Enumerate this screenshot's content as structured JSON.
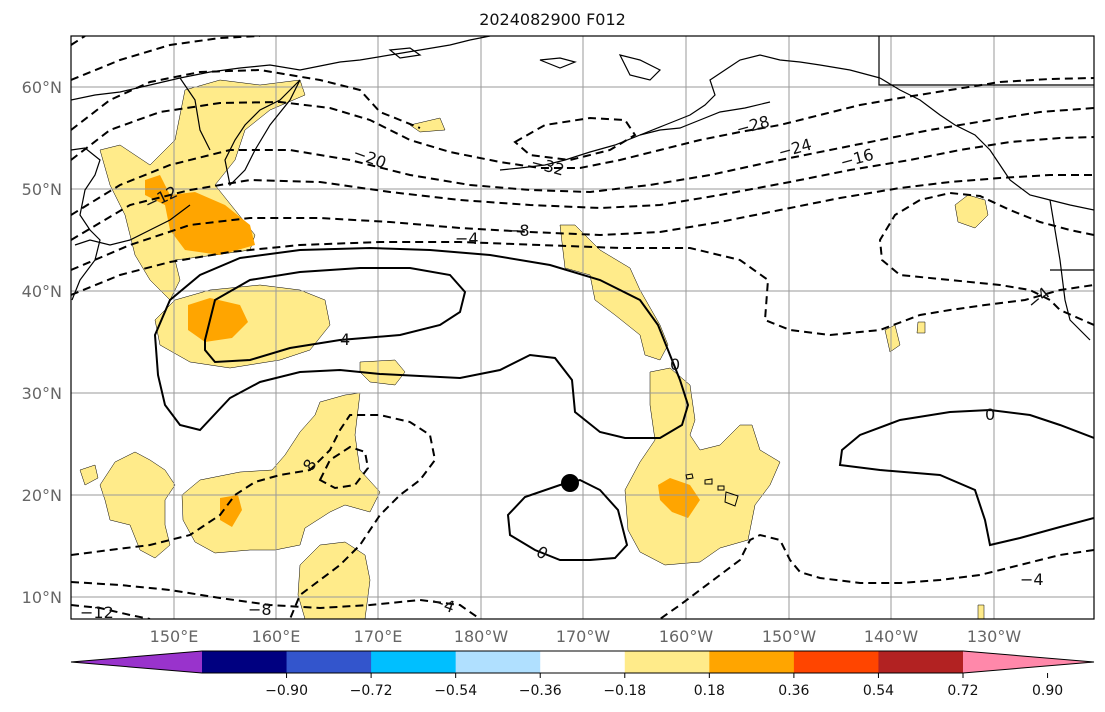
{
  "title": "2024082900 F012",
  "latitude_labels": [
    "60°N",
    "50°N",
    "40°N",
    "30°N",
    "20°N",
    "10°N"
  ],
  "longitude_labels": [
    "150°E",
    "160°E",
    "170°E",
    "180°W",
    "170°W",
    "160°W",
    "150°W",
    "140°W",
    "130°W"
  ],
  "colorbar": {
    "ticks": [
      "−0.90",
      "−0.72",
      "−0.54",
      "−0.36",
      "−0.18",
      "0.18",
      "0.36",
      "0.54",
      "0.72",
      "0.90"
    ],
    "colors": [
      "#9933cc",
      "#000080",
      "#3355cc",
      "#00bfff",
      "#b0e0ff",
      "#ffffff",
      "#ffeb8a",
      "#ffa500",
      "#ff4500",
      "#b22222",
      "#ff88aa"
    ]
  },
  "contour_labels": [
    "−20",
    "−32",
    "−28",
    "−24",
    "−16",
    "−12",
    "−8",
    "−4",
    "4",
    "8",
    "0",
    "0",
    "−4",
    "0",
    "−4",
    "−8",
    "−4",
    "8",
    "−4",
    "−12"
  ],
  "marker": {
    "name": "point-marker",
    "color": "#000000"
  }
}
